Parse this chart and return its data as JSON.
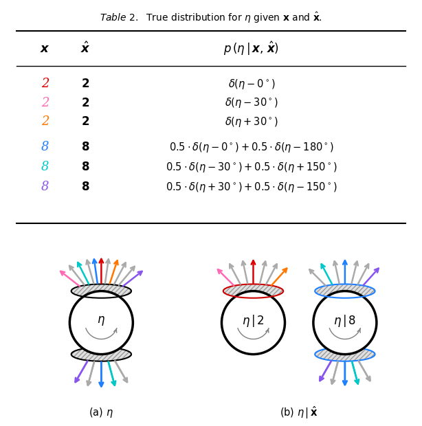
{
  "title": "Table 2.  True distribution for $\\eta$ given $\\mathbf{x}$ and $\\hat{\\mathbf{x}}$.",
  "formulas": [
    "$\\delta(\\eta - 0^\\circ)$",
    "$\\delta(\\eta - 30^\\circ)$",
    "$\\delta(\\eta + 30^\\circ)$",
    "$0.5 \\cdot \\delta(\\eta - 0^\\circ) + 0.5 \\cdot \\delta(\\eta - 180^\\circ)$",
    "$0.5 \\cdot \\delta(\\eta - 30^\\circ) + 0.5 \\cdot \\delta(\\eta + 150^\\circ)$",
    "$0.5 \\cdot \\delta(\\eta + 30^\\circ) + 0.5 \\cdot \\delta(\\eta - 150^\\circ)$"
  ],
  "x_vals": [
    "2",
    "2",
    "2",
    "8",
    "8",
    "8"
  ],
  "xhat_vals": [
    "2",
    "2",
    "2",
    "8",
    "8",
    "8"
  ],
  "x_colors": [
    "#dd0000",
    "#ff69b4",
    "#ff7700",
    "#1e7fff",
    "#00c8c8",
    "#8855ee"
  ],
  "caption_a": "(a) $\\eta$",
  "caption_b": "(b) $\\eta\\,|\\,\\hat{\\mathbf{x}}$",
  "red": "#dd0000",
  "pink": "#ff69b4",
  "orange": "#ff7700",
  "blue": "#1e7fff",
  "cyan": "#00c8c8",
  "purple": "#8855ee",
  "gray": "#aaaaaa",
  "darkgray": "#888888"
}
